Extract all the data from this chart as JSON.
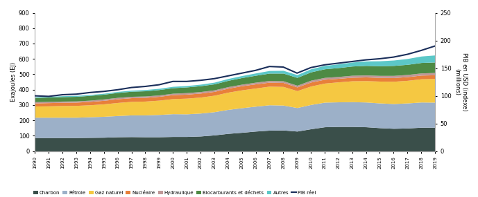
{
  "years": [
    1990,
    1991,
    1992,
    1993,
    1994,
    1995,
    1996,
    1997,
    1998,
    1999,
    2000,
    2001,
    2002,
    2003,
    2004,
    2005,
    2006,
    2007,
    2008,
    2009,
    2010,
    2011,
    2012,
    2013,
    2014,
    2015,
    2016,
    2017,
    2018,
    2019
  ],
  "charbon": [
    88,
    88,
    88,
    88,
    89,
    90,
    93,
    94,
    93,
    93,
    95,
    95,
    98,
    105,
    115,
    122,
    130,
    136,
    137,
    130,
    145,
    158,
    160,
    160,
    158,
    152,
    148,
    150,
    155,
    155
  ],
  "petrole": [
    132,
    132,
    132,
    132,
    134,
    136,
    138,
    141,
    142,
    145,
    148,
    147,
    149,
    151,
    156,
    160,
    162,
    165,
    162,
    153,
    158,
    160,
    160,
    161,
    161,
    161,
    161,
    163,
    164,
    163
  ],
  "gaz_naturel": [
    73,
    74,
    76,
    77,
    78,
    81,
    85,
    88,
    90,
    93,
    98,
    102,
    104,
    107,
    112,
    116,
    118,
    121,
    121,
    110,
    120,
    124,
    130,
    136,
    139,
    142,
    145,
    147,
    151,
    154
  ],
  "nucleaire": [
    20,
    21,
    21,
    21,
    22,
    23,
    24,
    24,
    24,
    25,
    26,
    26,
    26,
    25,
    26,
    27,
    27,
    26,
    26,
    24,
    26,
    25,
    23,
    23,
    24,
    24,
    24,
    24,
    24,
    24
  ],
  "hydraulique": [
    8,
    8,
    8,
    8,
    8,
    9,
    9,
    9,
    9,
    9,
    9,
    10,
    10,
    10,
    10,
    10,
    11,
    11,
    11,
    11,
    12,
    12,
    12,
    13,
    13,
    13,
    14,
    14,
    14,
    15
  ],
  "biocarburants": [
    28,
    28,
    29,
    30,
    31,
    31,
    32,
    33,
    34,
    35,
    36,
    37,
    38,
    39,
    41,
    43,
    45,
    48,
    50,
    51,
    54,
    56,
    58,
    60,
    62,
    63,
    65,
    66,
    68,
    68
  ],
  "autres": [
    5,
    5,
    6,
    6,
    6,
    6,
    7,
    7,
    8,
    8,
    9,
    9,
    10,
    11,
    12,
    13,
    15,
    17,
    18,
    18,
    20,
    22,
    24,
    26,
    29,
    32,
    35,
    38,
    42,
    46
  ],
  "pib_reel": [
    100,
    99,
    102,
    103,
    106,
    108,
    111,
    115,
    117,
    120,
    126,
    126,
    128,
    131,
    136,
    141,
    146,
    153,
    152,
    141,
    151,
    156,
    159,
    162,
    165,
    167,
    170,
    175,
    182,
    190
  ],
  "colors": {
    "charbon": "#3a4f4a",
    "petrole": "#9cb0c8",
    "gaz_naturel": "#f5c842",
    "nucleaire": "#e8803a",
    "hydraulique": "#c09898",
    "biocarburants": "#4e8a44",
    "autres": "#5cc8c8",
    "pib": "#1a2e5a"
  },
  "ylabel_left": "Exajoules (EJ)",
  "ylabel_right": "PIB en USD (indexe)\n(millions)",
  "ylim_left": [
    0,
    900
  ],
  "ylim_right": [
    0,
    250
  ],
  "yticks_left": [
    0,
    100,
    200,
    300,
    400,
    500,
    600,
    700,
    800,
    900
  ],
  "yticks_right": [
    0,
    50,
    100,
    150,
    200,
    250
  ],
  "legend_labels": [
    "Charbon",
    "Pétrole",
    "Gaz naturel",
    "Nucléaire",
    "Hydraulique",
    "Biocarburants et déchets",
    "Autres",
    "PIB réel"
  ],
  "bg_color": "#ffffff"
}
